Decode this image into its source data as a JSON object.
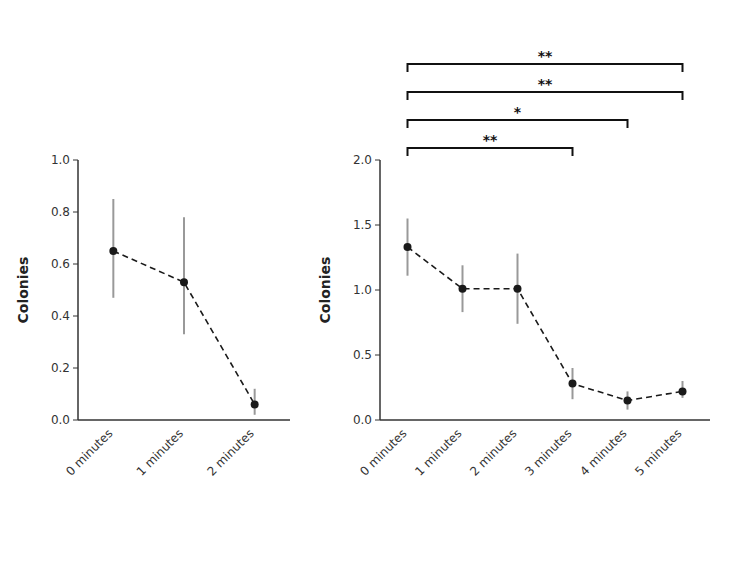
{
  "chart_data": [
    {
      "type": "line",
      "categories": [
        "0 minutes",
        "1 minutes",
        "2 minutes"
      ],
      "values": [
        0.65,
        0.53,
        0.06
      ],
      "error_upper": [
        0.2,
        0.25,
        0.06
      ],
      "error_lower": [
        0.18,
        0.2,
        0.04
      ],
      "ylabel": "Colonies",
      "ylim": [
        0.0,
        1.0
      ],
      "yticks": [
        {
          "value": 0.0,
          "label": "0.0"
        },
        0.2,
        0.4,
        0.6,
        0.8,
        {
          "value": 1.0,
          "label": "1.0"
        }
      ],
      "color": "#1a1a1a",
      "line_style": "dashed",
      "marker": "circle",
      "grid": false
    },
    {
      "type": "line",
      "categories": [
        "0 minutes",
        "1 minutes",
        "2 minutes",
        "3 minutes",
        "4 minutes",
        "5 minutes"
      ],
      "values": [
        1.33,
        1.01,
        1.01,
        0.28,
        0.15,
        0.22
      ],
      "error_upper": [
        0.22,
        0.18,
        0.27,
        0.12,
        0.07,
        0.08
      ],
      "error_lower": [
        0.22,
        0.18,
        0.27,
        0.12,
        0.07,
        0.05
      ],
      "ylabel": "Colonies",
      "ylim": [
        0.0,
        2.0
      ],
      "yticks": [
        {
          "value": 0.0,
          "label": "0.0"
        },
        0.5,
        {
          "value": 1.0,
          "label": "1.0"
        },
        1.5,
        {
          "value": 2.0,
          "label": "2.0"
        }
      ],
      "color": "#1a1a1a",
      "line_style": "dashed",
      "marker": "circle",
      "grid": false,
      "annotations": [
        {
          "label": "**",
          "from": "0 minutes",
          "to": "3 minutes"
        },
        {
          "label": "*",
          "from": "0 minutes",
          "to": "4 minutes"
        },
        {
          "label": "**",
          "from": "0 minutes",
          "to": "5 minutes"
        },
        {
          "label": "**",
          "from": "0 minutes",
          "to": "5 minutes"
        }
      ]
    }
  ]
}
